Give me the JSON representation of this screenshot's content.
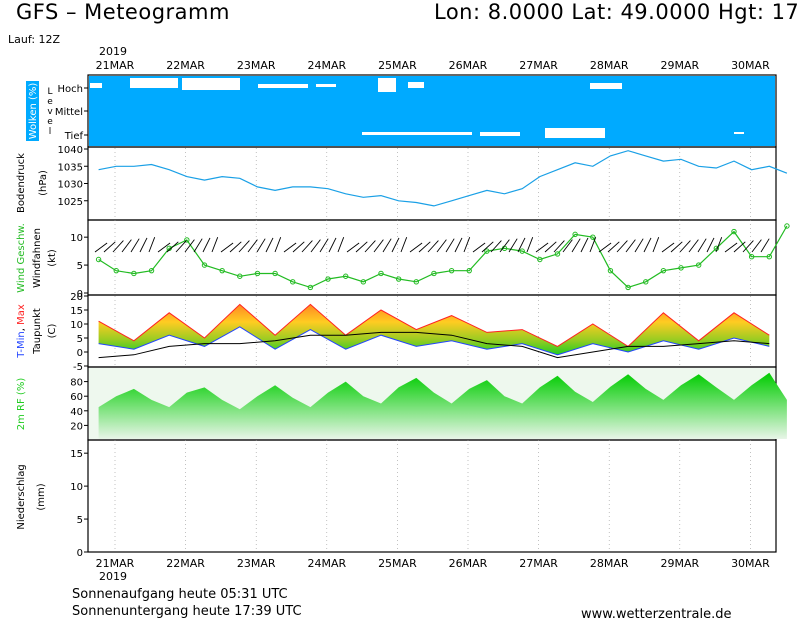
{
  "header": {
    "title": "GFS – Meteogramm",
    "coords": "Lon: 8.0000  Lat: 49.0000  Hgt: 17",
    "run": "Lauf: 12Z"
  },
  "dates": {
    "year": "2019",
    "labels": [
      "21MAR",
      "22MAR",
      "23MAR",
      "24MAR",
      "25MAR",
      "26MAR",
      "27MAR",
      "28MAR",
      "29MAR",
      "30MAR"
    ]
  },
  "footer": {
    "sunrise": "Sonnenaufgang heute 05:31 UTC",
    "sunset": "Sonnenuntergang heute 17:39 UTC",
    "site": "www.wetterzentrale.de"
  },
  "colors": {
    "cloud_bg": "#00aaff",
    "pressure_line": "#1aa0e6",
    "wind_speed": "#22bb22",
    "tmin": "#2244ff",
    "tmax": "#ff2222",
    "temp_fill_cold": "#22cc22",
    "temp_fill_mid": "#99cc22",
    "temp_fill_warm": "#ffcc22",
    "temp_fill_hot": "#ff8822",
    "humidity": "#22cc22",
    "dewpoint": "#000000"
  },
  "panels": {
    "cloud": {
      "ylabel": "Wolken (%)",
      "side_label": "Level",
      "levels": [
        "Hoch",
        "Mittel",
        "Tief"
      ]
    },
    "pressure": {
      "ylabel": "Bodendruck",
      "unit": "(hPa)",
      "ticks": [
        "1040",
        "1035",
        "1030",
        "1025"
      ]
    },
    "wind": {
      "ylabel": "Wind Geschw.",
      "ylabel2": "Windfahnen",
      "unit": "(kt)",
      "ticks": [
        "10",
        "5",
        "0"
      ]
    },
    "temp": {
      "ylabel_tmin": "T-Min",
      "ylabel_sep": ", ",
      "ylabel_tmax": "Max",
      "ylabel2": "Taupunkt",
      "unit": "(C)",
      "ticks": [
        "20",
        "15",
        "10",
        "5",
        "0",
        "-5"
      ]
    },
    "humidity": {
      "ylabel": "2m RF (%)",
      "ticks": [
        "80",
        "60",
        "40",
        "20"
      ]
    },
    "precip": {
      "ylabel": "Niederschlag",
      "unit": "(mm)",
      "ticks": [
        "15",
        "10",
        "5",
        "0"
      ]
    }
  },
  "chart_data": [
    {
      "type": "area",
      "title": "Wolken (%)",
      "x": [
        "21MAR",
        "22MAR",
        "23MAR",
        "24MAR",
        "25MAR",
        "26MAR",
        "27MAR",
        "28MAR",
        "29MAR",
        "30MAR"
      ],
      "series": [
        {
          "name": "Hoch",
          "values": [
            5,
            30,
            5,
            5,
            25,
            0,
            0,
            20,
            0,
            0
          ]
        },
        {
          "name": "Mittel",
          "values": [
            0,
            0,
            0,
            0,
            0,
            0,
            0,
            0,
            0,
            0
          ]
        },
        {
          "name": "Tief",
          "values": [
            0,
            0,
            0,
            0,
            15,
            10,
            5,
            30,
            5,
            5
          ]
        }
      ]
    },
    {
      "type": "line",
      "title": "Bodendruck (hPa)",
      "x": [
        0,
        0.25,
        0.5,
        0.75,
        1,
        1.25,
        1.5,
        1.75,
        2,
        2.25,
        2.5,
        2.75,
        3,
        3.25,
        3.5,
        3.75,
        4,
        4.25,
        4.5,
        4.75,
        5,
        5.25,
        5.5,
        5.75,
        6,
        6.25,
        6.5,
        6.75,
        7,
        7.25,
        7.5,
        7.75,
        8,
        8.25,
        8.5,
        8.75,
        9,
        9.25,
        9.5,
        9.75
      ],
      "values": [
        1034,
        1035,
        1035,
        1035.5,
        1034,
        1032,
        1031,
        1032,
        1031.5,
        1029,
        1028,
        1029,
        1029,
        1028.5,
        1027,
        1026,
        1026.5,
        1025,
        1024.5,
        1023.5,
        1025,
        1026.5,
        1028,
        1027,
        1028.5,
        1032,
        1034,
        1036,
        1035,
        1038,
        1039.5,
        1038,
        1036.5,
        1037,
        1035,
        1034.5,
        1036.5,
        1034,
        1035,
        1033
      ],
      "ylim": [
        1020,
        1040
      ]
    },
    {
      "type": "line",
      "title": "Wind Geschw. (kt)",
      "x": [
        0,
        0.25,
        0.5,
        0.75,
        1,
        1.25,
        1.5,
        1.75,
        2,
        2.25,
        2.5,
        2.75,
        3,
        3.25,
        3.5,
        3.75,
        4,
        4.25,
        4.5,
        4.75,
        5,
        5.25,
        5.5,
        5.75,
        6,
        6.25,
        6.5,
        6.75,
        7,
        7.25,
        7.5,
        7.75,
        8,
        8.25,
        8.5,
        8.75,
        9,
        9.25,
        9.5,
        9.75
      ],
      "values": [
        6,
        4,
        3.5,
        4,
        8,
        9.5,
        5,
        4,
        3,
        3.5,
        3.5,
        2,
        1,
        2.5,
        3,
        2,
        3.5,
        2.5,
        2,
        3.5,
        4,
        4,
        7.5,
        8,
        7.5,
        6,
        7,
        10.5,
        10,
        4,
        1,
        2,
        4,
        4.5,
        5,
        8,
        11,
        6.5,
        6.5,
        12
      ],
      "ylim": [
        0,
        12
      ]
    },
    {
      "type": "line",
      "title": "T-Min, Max, Taupunkt (C)",
      "x": [
        0,
        0.5,
        1,
        1.5,
        2,
        2.5,
        3,
        3.5,
        4,
        4.5,
        5,
        5.5,
        6,
        6.5,
        7,
        7.5,
        8,
        8.5,
        9,
        9.5
      ],
      "series": [
        {
          "name": "Max",
          "values": [
            11,
            4,
            14,
            5,
            17,
            6,
            17,
            6,
            15,
            8,
            13,
            7,
            8,
            2,
            10,
            2,
            14,
            4,
            14,
            6
          ]
        },
        {
          "name": "T-Min",
          "values": [
            3,
            1,
            6,
            2,
            9,
            1,
            8,
            1,
            6,
            2,
            4,
            1,
            3,
            -1,
            3,
            0,
            4,
            1,
            5,
            2
          ]
        },
        {
          "name": "Taupunkt",
          "values": [
            -2,
            -1,
            2,
            3,
            3,
            4,
            6,
            6,
            7,
            7,
            6,
            3,
            2,
            -2,
            0,
            2,
            2,
            3,
            4,
            3
          ]
        }
      ],
      "ylim": [
        -5,
        20
      ]
    },
    {
      "type": "area",
      "title": "2m RF (%)",
      "x": [
        0,
        0.25,
        0.5,
        0.75,
        1,
        1.25,
        1.5,
        1.75,
        2,
        2.25,
        2.5,
        2.75,
        3,
        3.25,
        3.5,
        3.75,
        4,
        4.25,
        4.5,
        4.75,
        5,
        5.25,
        5.5,
        5.75,
        6,
        6.25,
        6.5,
        6.75,
        7,
        7.25,
        7.5,
        7.75,
        8,
        8.25,
        8.5,
        8.75,
        9,
        9.25,
        9.5,
        9.75
      ],
      "values": [
        45,
        60,
        70,
        55,
        45,
        65,
        72,
        55,
        42,
        60,
        75,
        58,
        45,
        65,
        80,
        60,
        50,
        72,
        85,
        65,
        50,
        70,
        82,
        60,
        50,
        72,
        88,
        66,
        52,
        73,
        90,
        70,
        55,
        75,
        90,
        72,
        55,
        75,
        92,
        55
      ],
      "ylim": [
        0,
        100
      ]
    },
    {
      "type": "bar",
      "title": "Niederschlag (mm)",
      "x": [
        "21MAR",
        "22MAR",
        "23MAR",
        "24MAR",
        "25MAR",
        "26MAR",
        "27MAR",
        "28MAR",
        "29MAR",
        "30MAR"
      ],
      "values": [
        0,
        0,
        0,
        0,
        0,
        0,
        0,
        0,
        0,
        0
      ],
      "ylim": [
        0,
        17
      ]
    }
  ]
}
